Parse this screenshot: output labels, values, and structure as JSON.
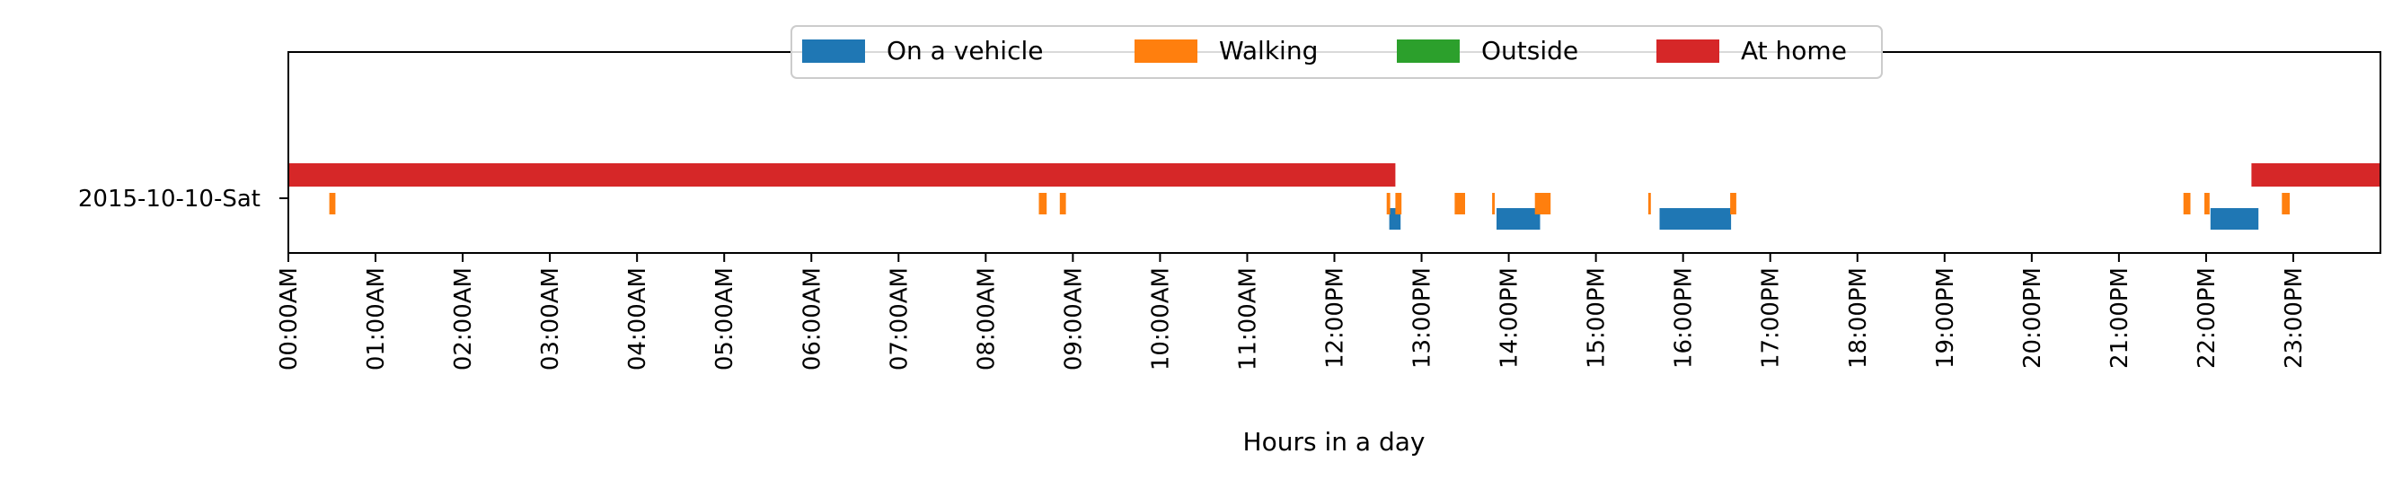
{
  "chart_data": {
    "type": "timeline",
    "title": "",
    "xlabel": "Hours in a day",
    "ylabel": "",
    "xlim": [
      0,
      24
    ],
    "grid": false,
    "legend_position": "top-center",
    "row_label": "2015-10-10-Sat",
    "tick_labels": [
      "00:00AM",
      "01:00AM",
      "02:00AM",
      "03:00AM",
      "04:00AM",
      "05:00AM",
      "06:00AM",
      "07:00AM",
      "08:00AM",
      "09:00AM",
      "10:00AM",
      "11:00AM",
      "12:00PM",
      "13:00PM",
      "14:00PM",
      "15:00PM",
      "16:00PM",
      "17:00PM",
      "18:00PM",
      "19:00PM",
      "20:00PM",
      "21:00PM",
      "22:00PM",
      "23:00PM"
    ],
    "series": [
      {
        "name": "On a vehicle",
        "color": "#1f77b4",
        "lane": "vehicle",
        "intervals": [
          [
            12.63,
            12.76
          ],
          [
            13.86,
            14.36
          ],
          [
            15.73,
            16.55
          ],
          [
            22.05,
            22.6
          ]
        ]
      },
      {
        "name": "Walking",
        "color": "#ff7f0e",
        "lane": "walking",
        "intervals": [
          [
            0.47,
            0.54
          ],
          [
            8.61,
            8.7
          ],
          [
            8.85,
            8.92
          ],
          [
            12.6,
            12.64
          ],
          [
            12.7,
            12.77
          ],
          [
            13.38,
            13.5
          ],
          [
            13.81,
            13.84
          ],
          [
            14.3,
            14.48
          ],
          [
            15.6,
            15.63
          ],
          [
            16.54,
            16.61
          ],
          [
            21.74,
            21.82
          ],
          [
            21.98,
            22.04
          ],
          [
            22.87,
            22.96
          ]
        ]
      },
      {
        "name": "Outside",
        "color": "#2ca02c",
        "lane": "outside",
        "intervals": []
      },
      {
        "name": "At home",
        "color": "#d62728",
        "lane": "home",
        "intervals": [
          [
            0.0,
            12.7
          ],
          [
            22.52,
            24.0
          ]
        ]
      }
    ]
  }
}
